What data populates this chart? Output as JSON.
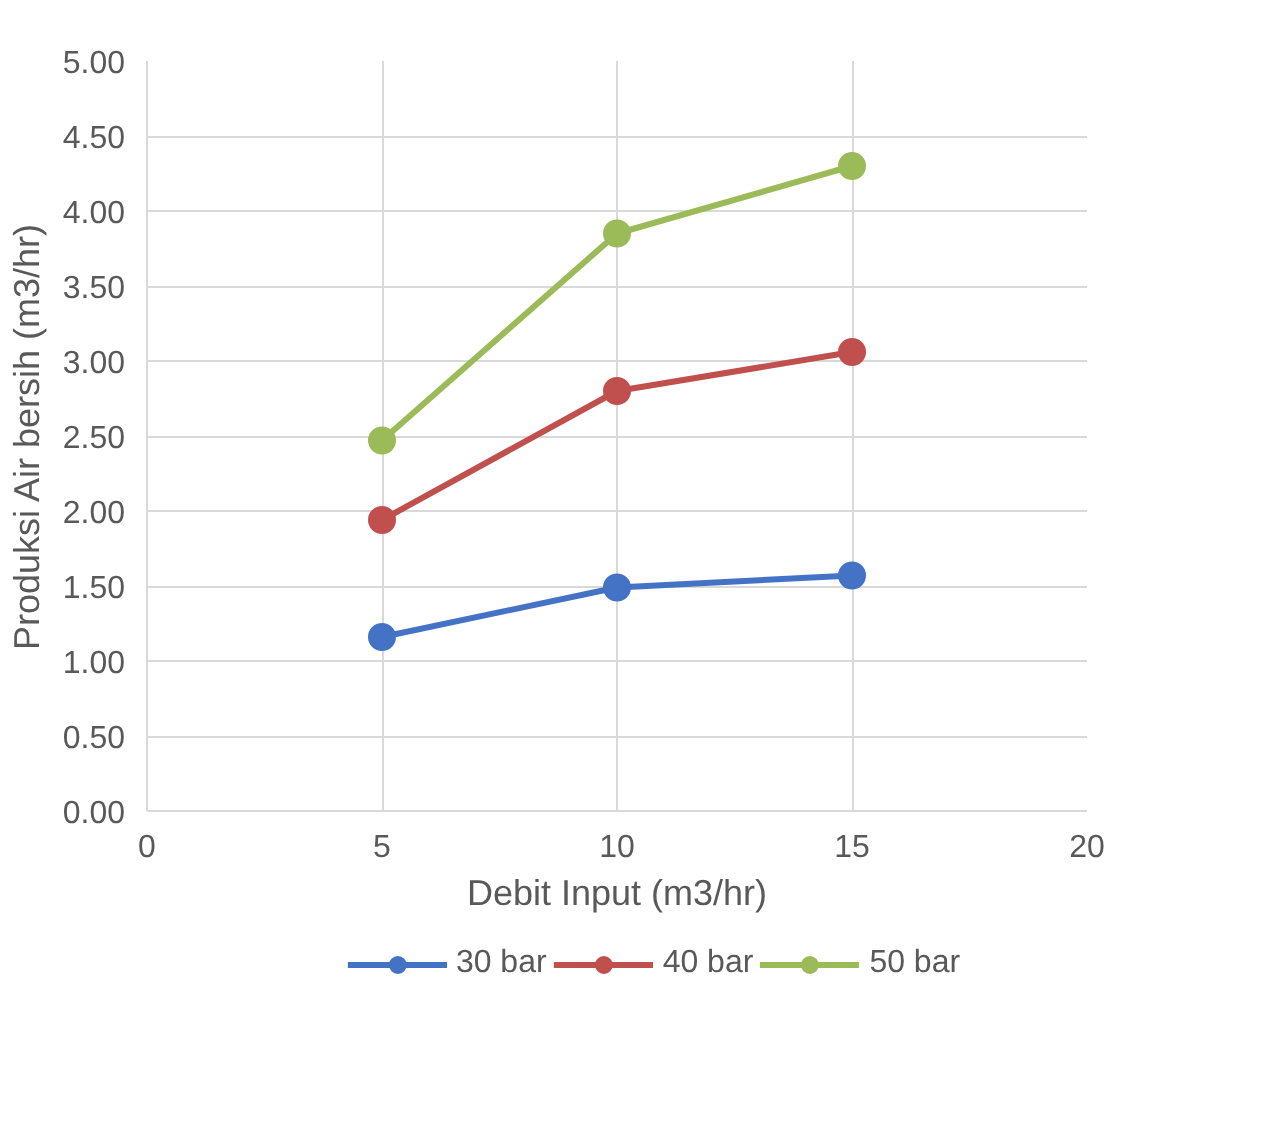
{
  "chart_data": {
    "type": "line",
    "xlabel": "Debit Input (m3/hr)",
    "ylabel": "Produksi Air bersih (m3/hr)",
    "x": [
      5,
      10,
      15
    ],
    "series": [
      {
        "name": "30 bar",
        "color": "#4472c4",
        "values": [
          1.16,
          1.49,
          1.57
        ]
      },
      {
        "name": "40 bar",
        "color": "#c0504d",
        "values": [
          1.94,
          2.8,
          3.06
        ]
      },
      {
        "name": "50 bar",
        "color": "#9bbb59",
        "values": [
          2.47,
          3.85,
          4.3
        ]
      }
    ],
    "xlim": [
      0,
      20
    ],
    "xticks": [
      0,
      5,
      10,
      15,
      20
    ],
    "ylim": [
      0,
      5
    ],
    "yticks": [
      {
        "value": 0,
        "label": "0.00"
      },
      {
        "value": 0.5,
        "label": "0.50"
      },
      {
        "value": 1,
        "label": "1.00"
      },
      {
        "value": 1.5,
        "label": "1.50"
      },
      {
        "value": 2,
        "label": "2.00"
      },
      {
        "value": 2.5,
        "label": "2.50"
      },
      {
        "value": 3,
        "label": "3.00"
      },
      {
        "value": 3.5,
        "label": "3.50"
      },
      {
        "value": 4,
        "label": "4.00"
      },
      {
        "value": 4.5,
        "label": "4.50"
      },
      {
        "value": 5,
        "label": "5.00"
      }
    ],
    "grid": true,
    "legend": "bottom",
    "marker": "circle",
    "line_style": "solid"
  }
}
